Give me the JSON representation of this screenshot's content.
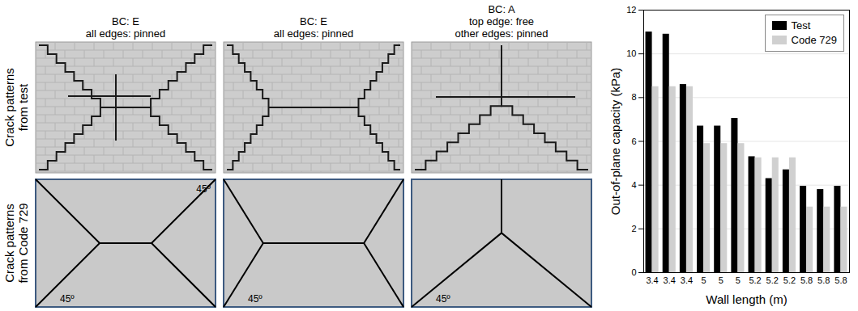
{
  "figure": {
    "row_labels": [
      [
        "Crack patterns",
        "from test"
      ],
      [
        "Crack patterns",
        "from Code 729"
      ]
    ],
    "columns": [
      {
        "header": [
          "BC: E",
          "all edges: pinned"
        ],
        "angle_labels": [
          "45º",
          "45º"
        ]
      },
      {
        "header": [
          "BC: E",
          "all edges: pinned"
        ],
        "angle_labels": [
          "45º"
        ]
      },
      {
        "header": [
          "BC: A",
          "top edge: free",
          "other edges: pinned"
        ],
        "angle_labels": [
          "45º"
        ]
      }
    ]
  },
  "chart_data": {
    "type": "bar",
    "x_label": "Wall length (m)",
    "y_label": "Out-of-plane capacity (kPa)",
    "categories": [
      "3.4",
      "3.4",
      "3.4",
      "5",
      "5",
      "5",
      "5.2",
      "5.2",
      "5.2",
      "5.8",
      "5.8",
      "5.8"
    ],
    "series": [
      {
        "name": "Test",
        "color": "#000000",
        "values": [
          11.0,
          10.9,
          8.6,
          6.7,
          6.7,
          7.05,
          5.3,
          4.3,
          4.7,
          3.95,
          3.8,
          3.95
        ]
      },
      {
        "name": "Code 729",
        "color": "#d0d0d0",
        "values": [
          8.5,
          8.5,
          8.5,
          5.9,
          5.9,
          5.9,
          5.25,
          5.25,
          5.25,
          3.0,
          3.0,
          3.0
        ]
      }
    ],
    "ylim": [
      0,
      12
    ],
    "yticks": [
      0,
      2,
      4,
      6,
      8,
      10,
      12
    ],
    "grid": true,
    "legend": "top-right"
  }
}
